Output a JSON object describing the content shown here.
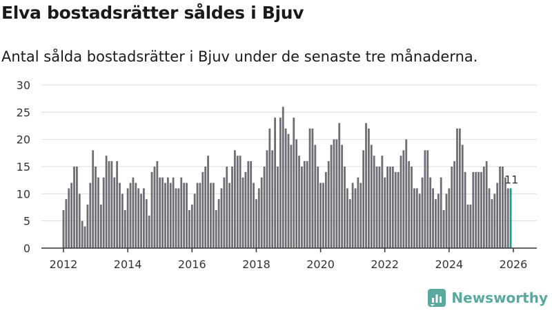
{
  "header": {
    "title": "Elva bostadsrätter såldes i Bjuv",
    "subtitle": "Antal sålda bostadsrätter i Bjuv under de senaste tre månaderna."
  },
  "brand": {
    "name": "Newsworthy",
    "icon": "newsworthy-logo-icon",
    "color": "#5aa89e"
  },
  "colors": {
    "bar": "#6e6d73",
    "highlight": "#1f9a8a",
    "grid": "#dddddd",
    "axis": "#333333"
  },
  "chart_data": {
    "type": "bar",
    "title": "Elva bostadsrätter såldes i Bjuv",
    "subtitle": "Antal sålda bostadsrätter i Bjuv under de senaste tre månaderna.",
    "xlabel": "",
    "ylabel": "",
    "ylim": [
      0,
      30
    ],
    "yticks": [
      0,
      5,
      10,
      15,
      20,
      25,
      30
    ],
    "xticks": [
      "2012",
      "2014",
      "2016",
      "2018",
      "2020",
      "2022",
      "2024",
      "2026"
    ],
    "grid": true,
    "start": "2012-01",
    "end": "2026-01",
    "highlight_label": "11",
    "values": [
      7,
      9,
      11,
      12,
      15,
      15,
      10,
      5,
      4,
      8,
      12,
      18,
      15,
      13,
      8,
      13,
      17,
      16,
      16,
      13,
      16,
      12,
      10,
      7,
      11,
      12,
      13,
      12,
      11,
      10,
      11,
      9,
      6,
      14,
      15,
      16,
      13,
      13,
      12,
      13,
      12,
      13,
      11,
      11,
      13,
      12,
      12,
      7,
      8,
      10,
      12,
      12,
      14,
      15,
      17,
      12,
      12,
      7,
      9,
      11,
      13,
      15,
      12,
      15,
      18,
      17,
      17,
      13,
      14,
      16,
      16,
      12,
      9,
      11,
      13,
      15,
      18,
      22,
      18,
      24,
      15,
      24,
      26,
      22,
      21,
      19,
      24,
      20,
      17,
      15,
      16,
      16,
      22,
      22,
      19,
      15,
      12,
      12,
      14,
      16,
      19,
      20,
      20,
      23,
      19,
      15,
      11,
      9,
      12,
      11,
      13,
      12,
      18,
      23,
      22,
      19,
      17,
      15,
      15,
      17,
      13,
      15,
      15,
      15,
      14,
      14,
      17,
      18,
      20,
      16,
      15,
      11,
      11,
      10,
      13,
      18,
      18,
      13,
      11,
      9,
      10,
      13,
      7,
      10,
      11,
      15,
      16,
      22,
      22,
      19,
      14,
      8,
      8,
      14,
      14,
      14,
      14,
      15,
      16,
      11,
      9,
      10,
      12,
      15,
      15,
      13,
      11,
      11
    ]
  }
}
